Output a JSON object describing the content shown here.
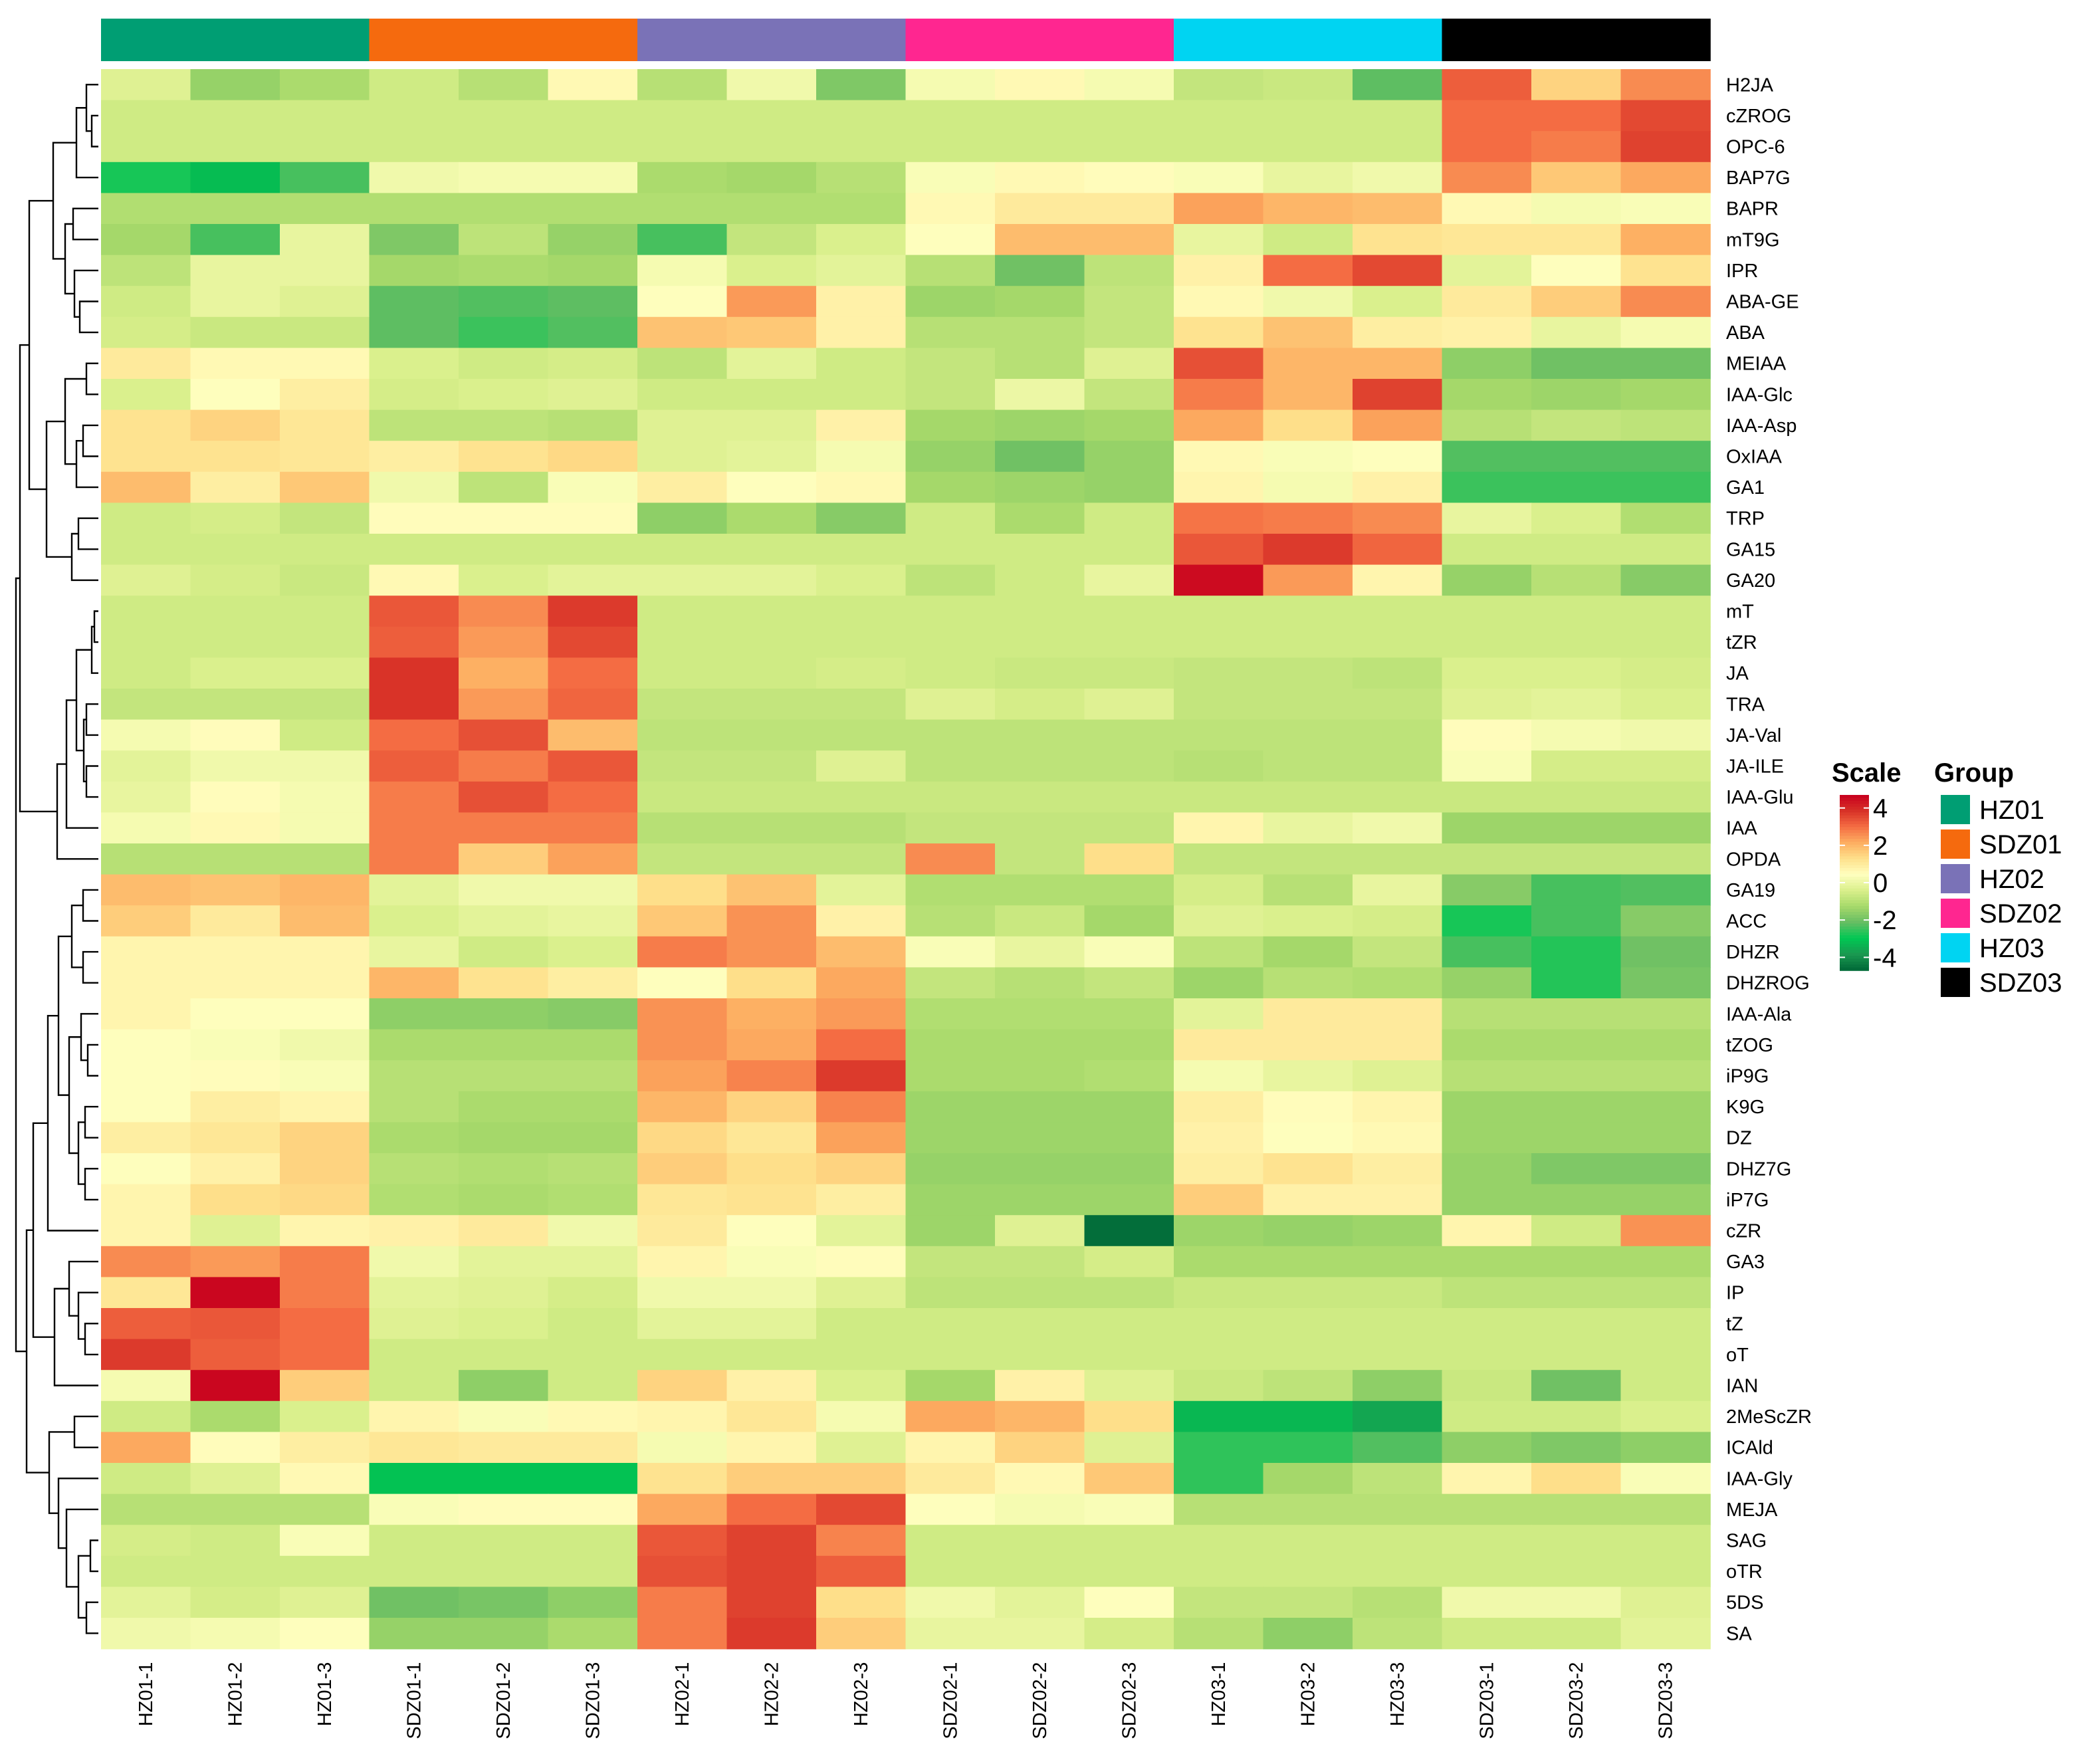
{
  "chart_data": {
    "type": "heatmap",
    "title": "",
    "xlabel": "",
    "ylabel": "",
    "columns": [
      "HZ01-1",
      "HZ01-2",
      "HZ01-3",
      "SDZ01-1",
      "SDZ01-2",
      "SDZ01-3",
      "HZ02-1",
      "HZ02-2",
      "HZ02-3",
      "SDZ02-1",
      "SDZ02-2",
      "SDZ02-3",
      "HZ03-1",
      "HZ03-2",
      "HZ03-3",
      "SDZ03-1",
      "SDZ03-2",
      "SDZ03-3"
    ],
    "column_groups": [
      "HZ01",
      "HZ01",
      "HZ01",
      "SDZ01",
      "SDZ01",
      "SDZ01",
      "HZ02",
      "HZ02",
      "HZ02",
      "SDZ02",
      "SDZ02",
      "SDZ02",
      "HZ03",
      "HZ03",
      "HZ03",
      "SDZ03",
      "SDZ03",
      "SDZ03"
    ],
    "rows": [
      "H2JA",
      "cZROG",
      "OPC-6",
      "BAP7G",
      "BAPR",
      "mT9G",
      "IPR",
      "ABA-GE",
      "ABA",
      "MEIAA",
      "IAA-Glc",
      "IAA-Asp",
      "OxIAA",
      "GA1",
      "TRP",
      "GA15",
      "GA20",
      "mT",
      "tZR",
      "JA",
      "TRA",
      "JA-Val",
      "JA-ILE",
      "IAA-Glu",
      "IAA",
      "OPDA",
      "GA19",
      "ACC",
      "DHZR",
      "DHZROG",
      "IAA-Ala",
      "tZOG",
      "iP9G",
      "K9G",
      "DZ",
      "DHZ7G",
      "iP7G",
      "cZR",
      "GA3",
      "IP",
      "tZ",
      "oT",
      "IAN",
      "2MeScZR",
      "ICAld",
      "IAA-Gly",
      "MEJA",
      "SAG",
      "oTR",
      "5DS",
      "SA"
    ],
    "values": [
      [
        -0.3,
        -1.5,
        -1.2,
        -0.6,
        -1.0,
        0.6,
        -1.0,
        0.1,
        -1.8,
        0.2,
        0.6,
        0.2,
        -0.8,
        -0.7,
        -2.2,
        3.2,
        1.5,
        2.6
      ],
      [
        -0.6,
        -0.6,
        -0.6,
        -0.6,
        -0.6,
        -0.6,
        -0.6,
        -0.6,
        -0.6,
        -0.6,
        -0.6,
        -0.6,
        -0.6,
        -0.6,
        -0.6,
        3.0,
        3.0,
        3.5
      ],
      [
        -0.6,
        -0.6,
        -0.6,
        -0.6,
        -0.6,
        -0.6,
        -0.6,
        -0.6,
        -0.6,
        -0.6,
        -0.6,
        -0.6,
        -0.6,
        -0.6,
        -0.6,
        3.0,
        2.8,
        3.6
      ],
      [
        -2.8,
        -3.2,
        -2.4,
        0.1,
        0.2,
        0.2,
        -1.2,
        -1.3,
        -1.0,
        0.3,
        0.6,
        0.5,
        0.3,
        -0.1,
        0.1,
        2.6,
        1.7,
        2.2
      ],
      [
        -1.1,
        -1.1,
        -1.1,
        -1.1,
        -1.1,
        -1.1,
        -1.1,
        -1.1,
        -1.1,
        0.6,
        1.0,
        1.0,
        2.3,
        2.0,
        1.9,
        0.6,
        0.2,
        0.3
      ],
      [
        -1.3,
        -2.4,
        -0.1,
        -1.8,
        -0.9,
        -1.5,
        -2.4,
        -0.8,
        -0.4,
        0.4,
        1.9,
        1.9,
        -0.1,
        -0.6,
        1.2,
        1.1,
        1.1,
        2.1
      ],
      [
        -0.9,
        -0.1,
        -0.1,
        -1.3,
        -1.2,
        -1.3,
        0.2,
        -0.4,
        -0.2,
        -1.0,
        -2.0,
        -0.9,
        0.8,
        3.0,
        3.5,
        -0.2,
        0.4,
        1.2
      ],
      [
        -0.6,
        -0.1,
        -0.3,
        -2.2,
        -2.3,
        -2.2,
        0.4,
        2.4,
        0.8,
        -1.4,
        -1.3,
        -0.8,
        0.6,
        0.1,
        -0.4,
        1.0,
        1.6,
        2.6
      ],
      [
        -0.5,
        -0.7,
        -0.7,
        -2.2,
        -2.5,
        -2.3,
        1.8,
        1.7,
        0.8,
        -1.0,
        -1.0,
        -0.8,
        1.2,
        1.8,
        0.9,
        0.8,
        -0.1,
        0.2
      ],
      [
        1.0,
        0.6,
        0.6,
        -0.4,
        -0.6,
        -0.5,
        -0.9,
        -0.2,
        -0.6,
        -0.8,
        -1.0,
        -0.3,
        3.4,
        2.0,
        2.0,
        -1.6,
        -2.0,
        -2.0
      ],
      [
        -0.4,
        0.4,
        0.9,
        -0.5,
        -0.4,
        -0.3,
        -0.6,
        -0.6,
        -0.6,
        -0.8,
        0.0,
        -0.8,
        2.8,
        2.0,
        3.6,
        -1.3,
        -1.4,
        -1.3
      ],
      [
        1.2,
        1.5,
        1.1,
        -0.9,
        -0.9,
        -1.0,
        -0.3,
        -0.3,
        0.8,
        -1.3,
        -1.4,
        -1.3,
        2.2,
        1.3,
        2.3,
        -1.0,
        -0.8,
        -0.9
      ],
      [
        1.2,
        1.2,
        1.1,
        0.9,
        1.2,
        1.4,
        -0.3,
        -0.2,
        0.2,
        -1.5,
        -2.0,
        -1.5,
        0.6,
        0.3,
        0.4,
        -2.3,
        -2.3,
        -2.3
      ],
      [
        1.9,
        0.9,
        1.7,
        0.1,
        -0.9,
        0.3,
        0.9,
        0.4,
        0.6,
        -1.3,
        -1.4,
        -1.5,
        0.7,
        0.2,
        0.8,
        -2.5,
        -2.5,
        -2.5
      ],
      [
        -0.6,
        -0.5,
        -0.8,
        0.5,
        0.5,
        0.5,
        -1.6,
        -1.2,
        -1.7,
        -0.6,
        -1.2,
        -0.6,
        2.9,
        2.8,
        2.6,
        -0.1,
        -0.4,
        -1.1
      ],
      [
        -0.6,
        -0.6,
        -0.6,
        -0.6,
        -0.6,
        -0.6,
        -0.6,
        -0.6,
        -0.6,
        -0.6,
        -0.6,
        -0.6,
        3.3,
        3.7,
        3.1,
        -0.6,
        -0.6,
        -0.6
      ],
      [
        -0.3,
        -0.5,
        -0.7,
        0.6,
        -0.4,
        -0.2,
        -0.2,
        -0.2,
        -0.4,
        -0.9,
        -0.6,
        -0.1,
        4.5,
        2.4,
        0.7,
        -1.5,
        -1.0,
        -1.7
      ],
      [
        -0.6,
        -0.6,
        -0.6,
        3.3,
        2.6,
        3.7,
        -0.6,
        -0.6,
        -0.6,
        -0.6,
        -0.6,
        -0.6,
        -0.6,
        -0.6,
        -0.6,
        -0.6,
        -0.6,
        -0.6
      ],
      [
        -0.6,
        -0.6,
        -0.6,
        3.2,
        2.4,
        3.5,
        -0.6,
        -0.6,
        -0.6,
        -0.6,
        -0.6,
        -0.6,
        -0.6,
        -0.6,
        -0.6,
        -0.6,
        -0.6,
        -0.6
      ],
      [
        -0.6,
        -0.4,
        -0.4,
        3.8,
        2.1,
        3.0,
        -0.6,
        -0.6,
        -0.5,
        -0.6,
        -0.7,
        -0.7,
        -0.8,
        -0.8,
        -0.9,
        -0.4,
        -0.4,
        -0.5
      ],
      [
        -0.8,
        -0.8,
        -0.8,
        3.8,
        2.4,
        3.1,
        -0.8,
        -0.8,
        -0.8,
        -0.3,
        -0.5,
        -0.3,
        -0.8,
        -0.8,
        -0.8,
        -0.3,
        -0.2,
        -0.4
      ],
      [
        0.2,
        0.5,
        -0.6,
        3.0,
        3.4,
        1.9,
        -0.9,
        -0.9,
        -0.9,
        -0.9,
        -0.9,
        -0.9,
        -0.9,
        -0.9,
        -0.9,
        0.5,
        0.2,
        0.1
      ],
      [
        -0.2,
        0.1,
        0.1,
        3.2,
        2.8,
        3.3,
        -0.8,
        -0.8,
        -0.3,
        -0.9,
        -0.9,
        -0.9,
        -1.0,
        -0.9,
        -0.9,
        0.3,
        -0.5,
        -0.5
      ],
      [
        -0.1,
        0.5,
        0.2,
        2.8,
        3.4,
        3.0,
        -0.7,
        -0.7,
        -0.7,
        -0.7,
        -0.7,
        -0.7,
        -0.7,
        -0.7,
        -0.7,
        -0.7,
        -0.7,
        -0.7
      ],
      [
        0.2,
        0.6,
        0.2,
        2.8,
        2.8,
        2.8,
        -1.0,
        -1.0,
        -1.0,
        -0.8,
        -0.8,
        -0.8,
        0.7,
        -0.1,
        0.1,
        -1.4,
        -1.4,
        -1.4
      ],
      [
        -1.0,
        -1.0,
        -1.0,
        2.8,
        1.6,
        2.3,
        -0.8,
        -0.8,
        -0.8,
        2.6,
        -0.8,
        1.3,
        -0.8,
        -0.8,
        -0.8,
        -0.8,
        -0.8,
        -0.8
      ],
      [
        1.9,
        1.8,
        2.0,
        -0.2,
        0.1,
        0.1,
        1.3,
        1.8,
        -0.2,
        -1.1,
        -1.1,
        -1.1,
        -0.5,
        -1.0,
        -0.1,
        -1.7,
        -2.4,
        -2.3
      ],
      [
        1.6,
        1.0,
        1.9,
        -0.4,
        -0.2,
        -0.1,
        1.7,
        2.5,
        0.8,
        -1.0,
        -0.7,
        -1.3,
        -0.3,
        -0.4,
        -0.5,
        -2.8,
        -2.4,
        -1.7
      ],
      [
        0.7,
        0.7,
        0.7,
        -0.1,
        -0.6,
        -0.4,
        2.8,
        2.5,
        1.9,
        0.3,
        -0.1,
        0.3,
        -0.9,
        -1.3,
        -0.8,
        -2.4,
        -2.7,
        -2.0
      ],
      [
        0.7,
        0.7,
        0.7,
        2.0,
        1.2,
        0.9,
        0.4,
        1.3,
        2.2,
        -0.8,
        -1.0,
        -0.8,
        -1.4,
        -1.0,
        -1.1,
        -1.5,
        -2.7,
        -1.9
      ],
      [
        0.7,
        0.4,
        0.4,
        -1.6,
        -1.6,
        -1.7,
        2.5,
        2.1,
        2.4,
        -1.1,
        -1.1,
        -1.1,
        -0.2,
        1.0,
        1.0,
        -1.0,
        -1.0,
        -1.0
      ],
      [
        0.4,
        0.3,
        0.1,
        -1.2,
        -1.2,
        -1.2,
        2.5,
        2.2,
        3.0,
        -1.2,
        -1.2,
        -1.2,
        1.0,
        1.0,
        1.0,
        -1.2,
        -1.2,
        -1.2
      ],
      [
        0.4,
        0.5,
        0.3,
        -1.0,
        -1.0,
        -1.0,
        2.3,
        2.7,
        3.7,
        -1.2,
        -1.2,
        -1.1,
        0.2,
        -0.1,
        -0.3,
        -1.0,
        -1.0,
        -1.0
      ],
      [
        0.4,
        0.9,
        0.7,
        -1.0,
        -1.2,
        -1.2,
        2.0,
        1.5,
        2.7,
        -1.4,
        -1.4,
        -1.4,
        0.9,
        0.5,
        0.7,
        -1.4,
        -1.4,
        -1.4
      ],
      [
        0.9,
        1.1,
        1.5,
        -1.2,
        -1.3,
        -1.3,
        1.4,
        1.1,
        2.3,
        -1.4,
        -1.4,
        -1.4,
        0.8,
        0.4,
        0.6,
        -1.4,
        -1.4,
        -1.4
      ],
      [
        0.4,
        0.8,
        1.5,
        -1.0,
        -1.1,
        -1.0,
        1.6,
        1.3,
        1.5,
        -1.5,
        -1.5,
        -1.5,
        0.9,
        1.2,
        0.9,
        -1.5,
        -1.8,
        -1.8
      ],
      [
        0.7,
        1.3,
        1.4,
        -1.1,
        -1.2,
        -1.1,
        1.1,
        1.2,
        0.9,
        -1.4,
        -1.4,
        -1.4,
        1.6,
        0.8,
        0.8,
        -1.5,
        -1.5,
        -1.5
      ],
      [
        0.7,
        -0.3,
        0.7,
        0.8,
        1.0,
        0.1,
        1.0,
        0.4,
        -0.2,
        -1.4,
        -0.3,
        -4.6,
        -1.4,
        -1.5,
        -1.4,
        0.7,
        -0.6,
        2.5
      ],
      [
        2.6,
        2.4,
        2.8,
        0.1,
        -0.2,
        -0.2,
        0.7,
        0.3,
        0.5,
        -0.8,
        -0.8,
        -0.5,
        -1.2,
        -1.2,
        -1.2,
        -1.2,
        -1.2,
        -1.2
      ],
      [
        1.1,
        4.6,
        2.8,
        -0.2,
        -0.3,
        -0.5,
        0.1,
        0.1,
        -0.3,
        -0.9,
        -0.9,
        -0.9,
        -0.7,
        -0.7,
        -0.7,
        -0.9,
        -0.9,
        -0.9
      ],
      [
        3.2,
        3.3,
        3.0,
        -0.3,
        -0.4,
        -0.6,
        -0.2,
        -0.2,
        -0.6,
        -0.6,
        -0.6,
        -0.6,
        -0.6,
        -0.6,
        -0.6,
        -0.6,
        -0.6,
        -0.6
      ],
      [
        3.7,
        3.2,
        3.0,
        -0.6,
        -0.6,
        -0.6,
        -0.6,
        -0.6,
        -0.6,
        -0.6,
        -0.6,
        -0.6,
        -0.6,
        -0.6,
        -0.6,
        -0.6,
        -0.6,
        -0.6
      ],
      [
        0.2,
        4.6,
        1.6,
        -0.6,
        -1.6,
        -0.6,
        1.5,
        0.8,
        -0.4,
        -1.3,
        0.8,
        -0.3,
        -0.7,
        -0.9,
        -1.6,
        -0.7,
        -2.0,
        -0.6
      ],
      [
        -0.6,
        -1.2,
        -0.4,
        0.7,
        0.3,
        0.6,
        0.7,
        1.1,
        0.2,
        2.2,
        2.0,
        1.3,
        -3.3,
        -3.3,
        -3.6,
        -0.6,
        -0.6,
        -0.4
      ],
      [
        2.2,
        0.5,
        0.9,
        1.1,
        1.0,
        1.0,
        0.2,
        0.7,
        -0.3,
        0.7,
        1.5,
        -0.3,
        -2.6,
        -2.6,
        -2.3,
        -1.6,
        -1.8,
        -1.6
      ],
      [
        -0.6,
        -0.3,
        0.6,
        -3.1,
        -3.1,
        -3.1,
        1.2,
        1.6,
        1.6,
        1.0,
        0.6,
        1.7,
        -2.6,
        -1.3,
        -0.9,
        0.7,
        1.3,
        0.3
      ],
      [
        -1.0,
        -1.0,
        -1.0,
        0.3,
        0.5,
        0.5,
        2.2,
        3.0,
        3.5,
        0.4,
        0.2,
        0.3,
        -1.0,
        -1.0,
        -1.0,
        -1.0,
        -1.0,
        -1.0
      ],
      [
        -0.5,
        -0.6,
        0.3,
        -0.6,
        -0.6,
        -0.6,
        3.3,
        3.6,
        2.7,
        -0.6,
        -0.6,
        -0.6,
        -0.6,
        -0.6,
        -0.6,
        -0.6,
        -0.6,
        -0.6
      ],
      [
        -0.6,
        -0.6,
        -0.6,
        -0.6,
        -0.6,
        -0.6,
        3.4,
        3.6,
        3.2,
        -0.6,
        -0.6,
        -0.6,
        -0.6,
        -0.6,
        -0.6,
        -0.6,
        -0.6,
        -0.6
      ],
      [
        -0.2,
        -0.5,
        -0.3,
        -2.0,
        -1.9,
        -1.6,
        2.8,
        3.6,
        1.3,
        0.1,
        -0.2,
        0.4,
        -0.8,
        -0.8,
        -1.0,
        0.1,
        0.1,
        -0.3
      ],
      [
        0.1,
        0.2,
        0.4,
        -1.5,
        -1.5,
        -1.2,
        2.8,
        3.7,
        1.6,
        -0.1,
        -0.1,
        -0.5,
        -1.0,
        -1.6,
        -0.9,
        -0.6,
        -0.6,
        -0.2
      ]
    ],
    "scale": {
      "title": "Scale",
      "min": -4.7,
      "max": 4.7,
      "ticks": [
        4,
        2,
        0,
        -2,
        -4
      ]
    },
    "group_legend": {
      "title": "Group",
      "items": [
        {
          "name": "HZ01",
          "color": "#009E73"
        },
        {
          "name": "SDZ01",
          "color": "#F56A0E"
        },
        {
          "name": "HZ02",
          "color": "#7A72B7"
        },
        {
          "name": "SDZ02",
          "color": "#FF2690"
        },
        {
          "name": "HZ03",
          "color": "#00D4F2"
        },
        {
          "name": "SDZ03",
          "color": "#000000"
        }
      ]
    },
    "palette": [
      "#006837",
      "#1A9850",
      "#00C853",
      "#66BD63",
      "#A6D96A",
      "#D9EF8B",
      "#FFFFBF",
      "#FEE08B",
      "#FDAE61",
      "#F46D43",
      "#D73027",
      "#C8001E"
    ],
    "legend_position": "right"
  }
}
